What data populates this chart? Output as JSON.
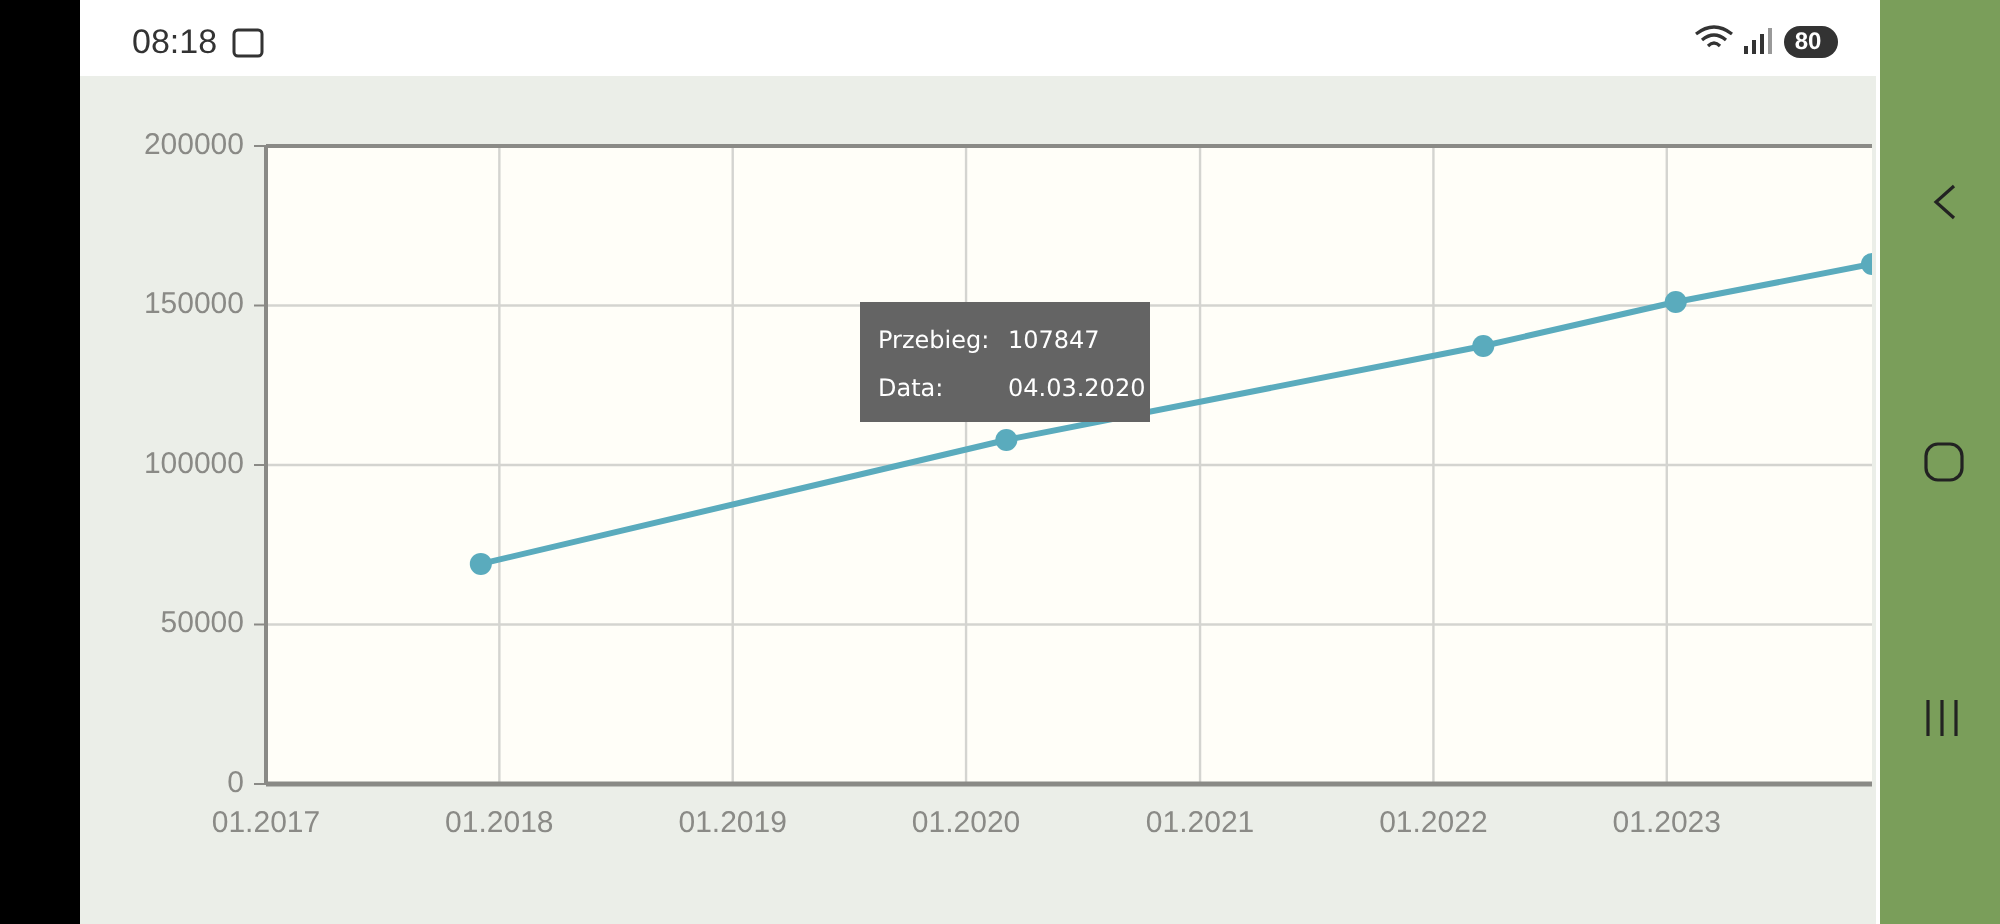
{
  "chart_data": {
    "type": "line",
    "x": [
      "2017-12-03",
      "2020-03-04",
      "2022-03-20",
      "2023-01-15",
      "2023-11-18"
    ],
    "series": [
      {
        "color": "#5aabbd",
        "values": [
          69000,
          107847,
          137300,
          151100,
          163000
        ]
      }
    ],
    "xlim": [
      "2017-01-01",
      "2023-11-18"
    ],
    "xticks": [
      {
        "value": "2017-01-01",
        "label": "01.2017"
      },
      {
        "value": "2018-01-01",
        "label": "01.2018"
      },
      {
        "value": "2019-01-01",
        "label": "01.2019"
      },
      {
        "value": "2020-01-01",
        "label": "01.2020"
      },
      {
        "value": "2021-01-01",
        "label": "01.2021"
      },
      {
        "value": "2022-01-01",
        "label": "01.2022"
      },
      {
        "value": "2023-01-01",
        "label": "01.2023"
      }
    ],
    "ylim": [
      0,
      200000
    ],
    "yticks": [
      0,
      50000,
      100000,
      150000,
      200000
    ],
    "grid": true,
    "marker": "circle",
    "line_style": "solid",
    "annotations": [
      "Przebieg: 107847",
      "Data: 04.03.2020",
      "08:18",
      "80"
    ]
  }
}
